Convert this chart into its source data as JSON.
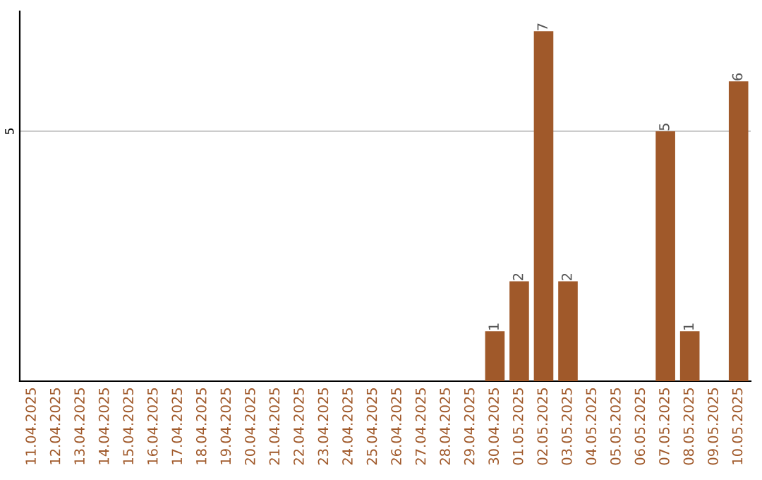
{
  "chart_data": {
    "type": "bar",
    "categories": [
      "11.04.2025",
      "12.04.2025",
      "13.04.2025",
      "14.04.2025",
      "15.04.2025",
      "16.04.2025",
      "17.04.2025",
      "18.04.2025",
      "19.04.2025",
      "20.04.2025",
      "21.04.2025",
      "22.04.2025",
      "23.04.2025",
      "24.04.2025",
      "25.04.2025",
      "26.04.2025",
      "27.04.2025",
      "28.04.2025",
      "29.04.2025",
      "30.04.2025",
      "01.05.2025",
      "02.05.2025",
      "03.05.2025",
      "04.05.2025",
      "05.05.2025",
      "06.05.2025",
      "07.05.2025",
      "08.05.2025",
      "09.05.2025",
      "10.05.2025"
    ],
    "values": [
      null,
      null,
      null,
      null,
      null,
      null,
      null,
      null,
      null,
      null,
      null,
      null,
      null,
      null,
      null,
      null,
      null,
      null,
      null,
      1,
      2,
      7,
      2,
      null,
      null,
      null,
      5,
      1,
      null,
      6
    ],
    "data_labels": true,
    "color": "#a0592a",
    "ylim": [
      0,
      7.4
    ],
    "ref_lines": [
      {
        "axis": "y",
        "value": 5,
        "label": "5",
        "color": "#cccccc"
      }
    ]
  }
}
